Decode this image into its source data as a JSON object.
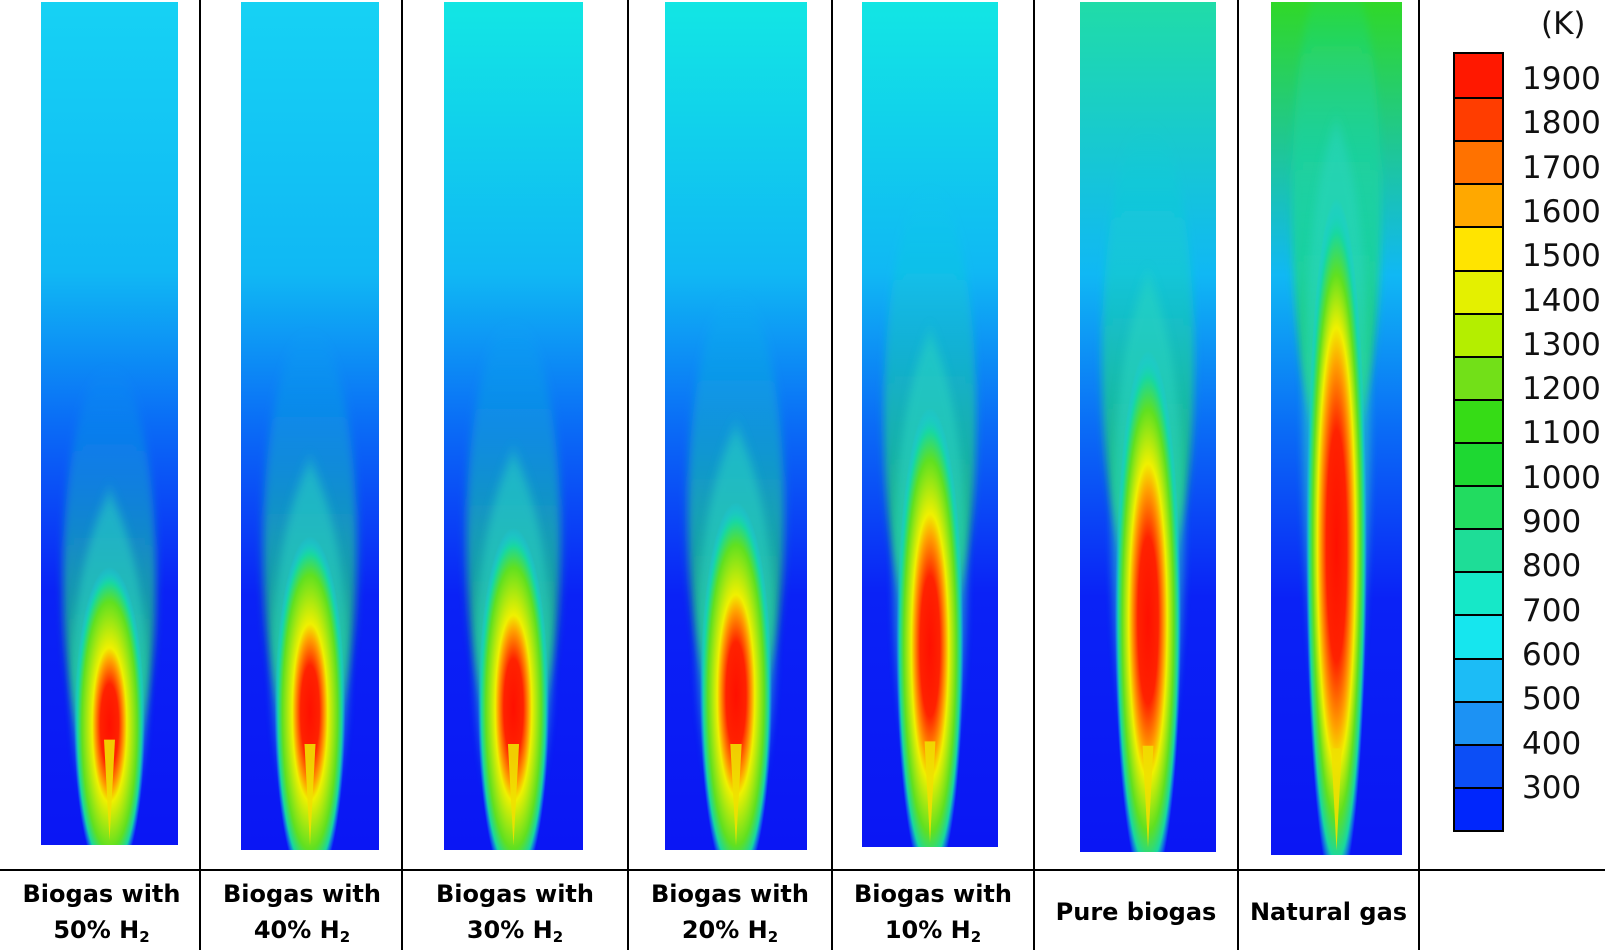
{
  "colorbar": {
    "unit": "(K)",
    "ticks": [
      "1900",
      "1800",
      "1700",
      "1600",
      "1500",
      "1400",
      "1300",
      "1200",
      "1100",
      "1000",
      "900",
      "800",
      "700",
      "600",
      "500",
      "400",
      "300"
    ],
    "colors": [
      "#ff1800",
      "#ff3d00",
      "#ff7200",
      "#ffa800",
      "#ffe400",
      "#e4f000",
      "#b4ee00",
      "#72e018",
      "#36dc16",
      "#1ed832",
      "#22dc60",
      "#1edd97",
      "#16e8c8",
      "#16e6ee",
      "#1cbcf6",
      "#1c92f4",
      "#0c4ef6",
      "#0026fc"
    ]
  },
  "cases": [
    {
      "line1": "Biogas  with",
      "line2": "50% H",
      "sub": "2",
      "flame_length": 0.36,
      "core": 0.74
    },
    {
      "line1": "Biogas  with",
      "line2": "40% H",
      "sub": "2",
      "flame_length": 0.4,
      "core": 0.76
    },
    {
      "line1": "Biogas  with",
      "line2": "30% H",
      "sub": "2",
      "flame_length": 0.41,
      "core": 0.78
    },
    {
      "line1": "Biogas  with",
      "line2": "20% H",
      "sub": "2",
      "flame_length": 0.44,
      "core": 0.79
    },
    {
      "line1": "Biogas  with",
      "line2": "10% H",
      "sub": "2",
      "flame_length": 0.55,
      "core": 0.84
    },
    {
      "line1": "Pure biogas",
      "line2": "",
      "sub": "",
      "flame_length": 0.62,
      "core": 0.88
    },
    {
      "line1": "Natural gas",
      "line2": "",
      "sub": "",
      "flame_length": 0.8,
      "core": 0.95
    }
  ]
}
